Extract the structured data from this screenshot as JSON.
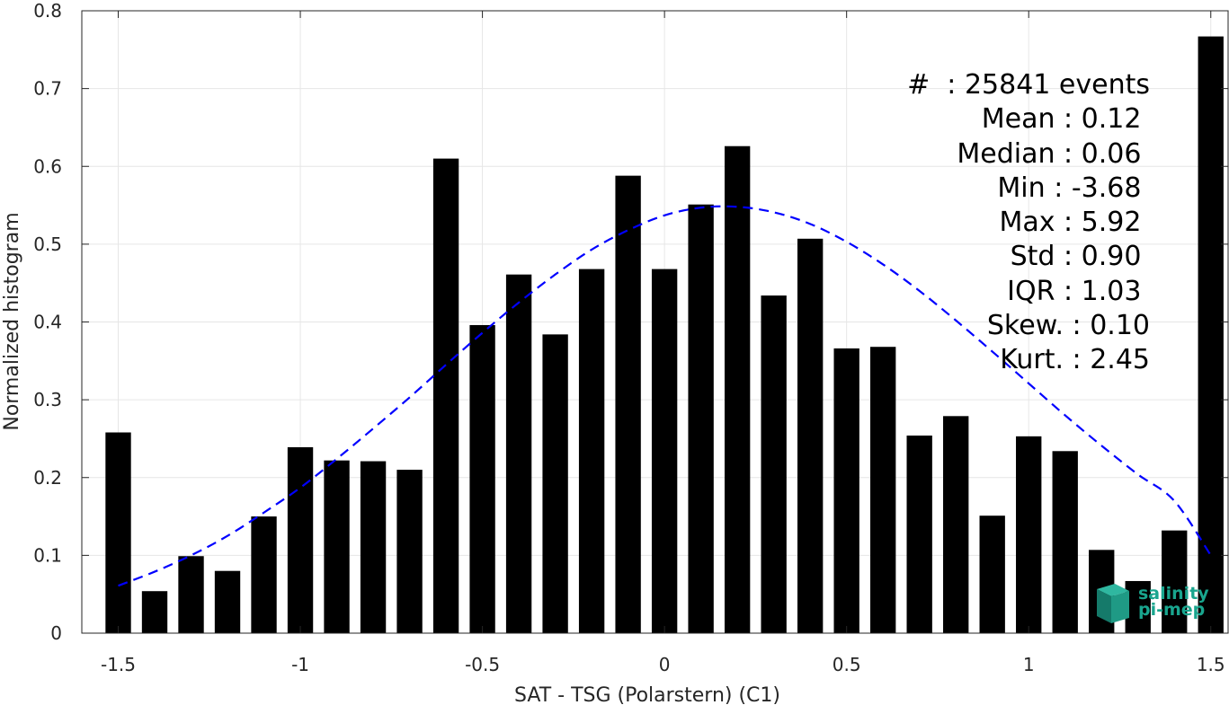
{
  "chart_data": {
    "type": "bar",
    "xlabel": "SAT - TSG (Polarstern) (C1)",
    "ylabel": "Normalized histogram",
    "xlim": [
      -1.6,
      1.55
    ],
    "ylim": [
      0,
      0.8
    ],
    "xticks": [
      -1.5,
      -1,
      -0.5,
      0,
      0.5,
      1,
      1.5
    ],
    "xtick_labels": [
      "-1.5",
      "-1",
      "-0.5",
      "0",
      "0.5",
      "1",
      "1.5"
    ],
    "yticks": [
      0,
      0.1,
      0.2,
      0.3,
      0.4,
      0.5,
      0.6,
      0.7,
      0.8
    ],
    "ytick_labels": [
      "0",
      "0.1",
      "0.2",
      "0.3",
      "0.4",
      "0.5",
      "0.6",
      "0.7",
      "0.8"
    ],
    "grid": true,
    "bar_color": "#000000",
    "x": [
      -1.5,
      -1.4,
      -1.3,
      -1.2,
      -1.1,
      -1.0,
      -0.9,
      -0.8,
      -0.7,
      -0.6,
      -0.5,
      -0.4,
      -0.3,
      -0.2,
      -0.1,
      0.0,
      0.1,
      0.2,
      0.3,
      0.4,
      0.5,
      0.6,
      0.7,
      0.8,
      0.9,
      1.0,
      1.1,
      1.2,
      1.3,
      1.4,
      1.5
    ],
    "values": [
      0.258,
      0.054,
      0.099,
      0.08,
      0.15,
      0.239,
      0.222,
      0.221,
      0.21,
      0.61,
      0.396,
      0.461,
      0.384,
      0.468,
      0.588,
      0.468,
      0.551,
      0.626,
      0.434,
      0.507,
      0.366,
      0.368,
      0.254,
      0.279,
      0.151,
      0.253,
      0.234,
      0.107,
      0.067,
      0.132,
      0.767
    ],
    "fit_curve": {
      "style": "dashed",
      "color": "#0000ff",
      "x": [
        -1.5,
        -1.4,
        -1.3,
        -1.2,
        -1.1,
        -1.0,
        -0.9,
        -0.8,
        -0.7,
        -0.6,
        -0.5,
        -0.4,
        -0.3,
        -0.2,
        -0.1,
        0.0,
        0.1,
        0.2,
        0.3,
        0.4,
        0.5,
        0.6,
        0.7,
        0.8,
        0.9,
        1.0,
        1.1,
        1.2,
        1.3,
        1.4,
        1.5
      ],
      "y": [
        0.061,
        0.079,
        0.1,
        0.125,
        0.155,
        0.187,
        0.224,
        0.263,
        0.303,
        0.345,
        0.386,
        0.425,
        0.461,
        0.493,
        0.518,
        0.537,
        0.547,
        0.548,
        0.541,
        0.526,
        0.503,
        0.474,
        0.44,
        0.402,
        0.362,
        0.321,
        0.28,
        0.241,
        0.204,
        0.17,
        0.1
      ]
    }
  },
  "stats": [
    "#  : 25841 events",
    "Mean : 0.12 ",
    "Median : 0.06 ",
    "Min : -3.68 ",
    "Max : 5.92 ",
    "Std : 0.90 ",
    "IQR : 1.03 ",
    "Skew. : 0.10",
    "Kurt. : 2.45"
  ],
  "logo": {
    "line1": "salinity",
    "line2": "pi-mep",
    "color": "#19a58e"
  }
}
